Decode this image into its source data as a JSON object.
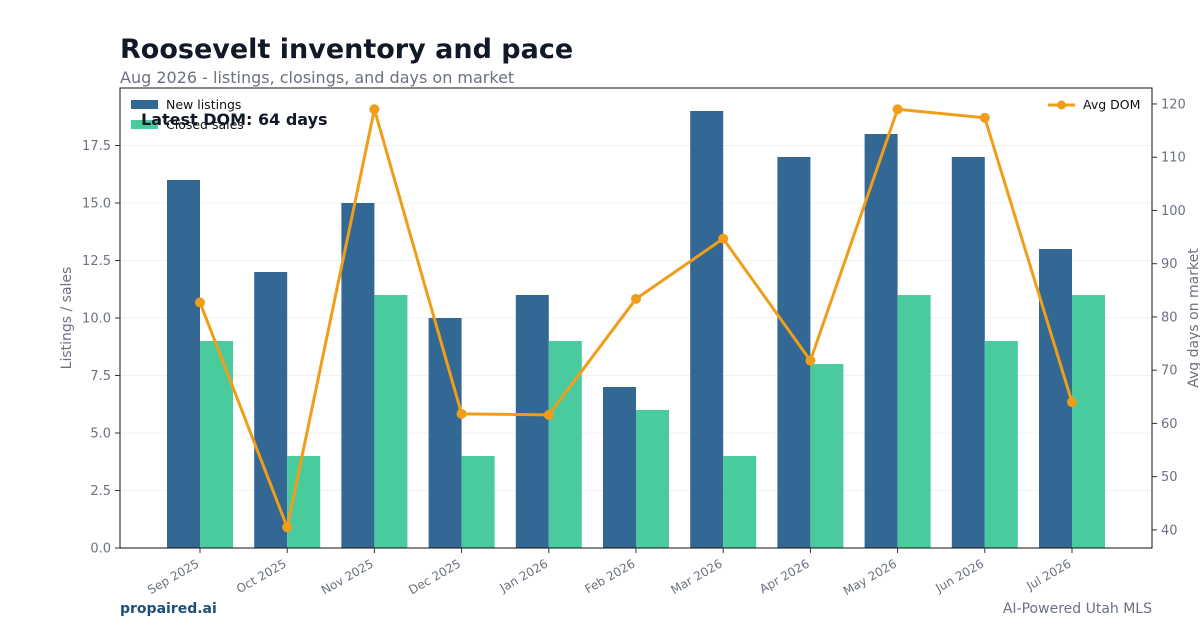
{
  "header": {
    "title": "Roosevelt inventory and pace",
    "subtitle": "Aug 2026 - listings, closings, and days on market"
  },
  "footer": {
    "brand": "propaired.ai",
    "tagline": "AI-Powered Utah MLS"
  },
  "colors": {
    "new_listings": "#336794",
    "closed_sales": "#4acb9e",
    "avg_dom": "#f09e1a"
  },
  "chart_data": {
    "type": "bar",
    "categories": [
      "Sep 2025",
      "Oct 2025",
      "Nov 2025",
      "Dec 2025",
      "Jan 2026",
      "Feb 2026",
      "Mar 2026",
      "Apr 2026",
      "May 2026",
      "Jun 2026",
      "Jul 2026"
    ],
    "series": [
      {
        "name": "New listings",
        "type": "bar",
        "axis": "left",
        "values": [
          16,
          12,
          15,
          10,
          11,
          7,
          19,
          17,
          18,
          17,
          13
        ]
      },
      {
        "name": "Closed sales",
        "type": "bar",
        "axis": "left",
        "values": [
          9,
          4,
          11,
          4,
          9,
          6,
          4,
          8,
          11,
          9,
          11
        ]
      },
      {
        "name": "Avg DOM",
        "type": "line",
        "axis": "right",
        "values": [
          82.7,
          40.5,
          119,
          61.8,
          61.6,
          83.4,
          94.7,
          71.8,
          119,
          117.4,
          64
        ]
      }
    ],
    "ylabel": "Listings / sales",
    "y2label": "Avg days on market",
    "ylim": [
      0,
      20
    ],
    "y2lim": [
      36.6,
      123
    ],
    "yticks": [
      "0.0",
      "2.5",
      "5.0",
      "7.5",
      "10.0",
      "12.5",
      "15.0",
      "17.5"
    ],
    "y2ticks": [
      "40",
      "50",
      "60",
      "70",
      "80",
      "90",
      "100",
      "110",
      "120"
    ],
    "annotation": "Latest DOM: 64 days",
    "legend_left": "top-left",
    "legend_right": "top-right",
    "grid": true
  }
}
